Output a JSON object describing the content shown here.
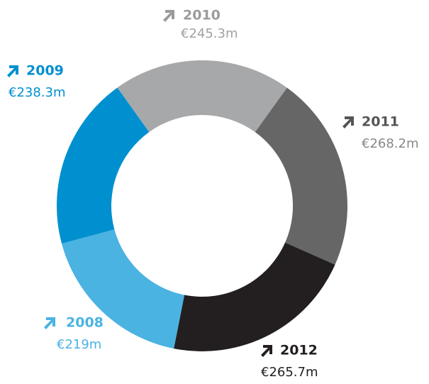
{
  "chart_data": {
    "type": "donut",
    "categories": [
      "2008",
      "2009",
      "2010",
      "2011",
      "2012"
    ],
    "values": [
      219,
      238.3,
      245.3,
      268.2,
      265.7
    ],
    "value_labels": [
      "€219m",
      "€238.3m",
      "€245.3m",
      "€268.2m",
      "€265.7m"
    ],
    "colors": [
      "#4ab3e2",
      "#0090d0",
      "#a7a8aa",
      "#666666",
      "#231f20"
    ]
  }
}
